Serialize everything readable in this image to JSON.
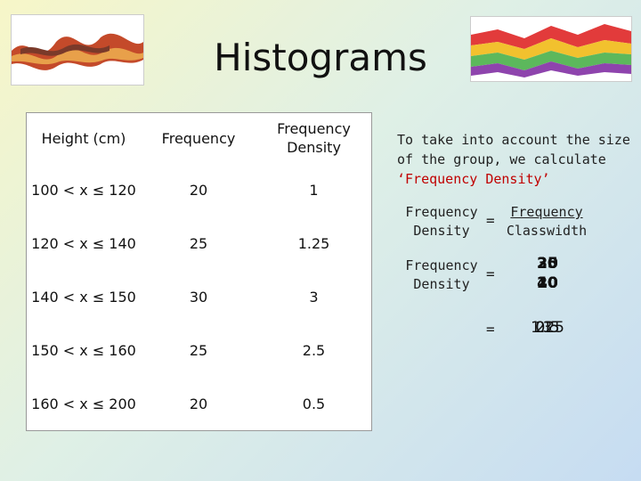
{
  "title": "Histograms",
  "table": {
    "headers": [
      "Height (cm)",
      "Frequency",
      "Frequency\nDensity"
    ],
    "rows": [
      [
        "100 < x ≤ 120",
        "20",
        "1"
      ],
      [
        "120 < x ≤ 140",
        "25",
        "1.25"
      ],
      [
        "140 < x ≤ 150",
        "30",
        "3"
      ],
      [
        "150 < x ≤ 160",
        "25",
        "2.5"
      ],
      [
        "160 < x ≤ 200",
        "20",
        "0.5"
      ]
    ]
  },
  "explain": {
    "before": "To take into account the size of the group, we calculate ",
    "highlight": "‘Frequency Density’"
  },
  "formula": {
    "lhs_line1": "Frequency",
    "lhs_line2": "Density",
    "equals": "=",
    "numerator": "Frequency",
    "denominator": "Classwidth"
  },
  "worked": {
    "lhs_line1": "Frequency",
    "lhs_line2": "Density",
    "equals": "=",
    "numerators": [
      "20",
      "25",
      "30",
      "25",
      "20"
    ],
    "denominators": [
      "20",
      "20",
      "10",
      "10",
      "40"
    ],
    "results": [
      "1",
      "1.25",
      "3",
      "2.5",
      "0.5"
    ]
  }
}
